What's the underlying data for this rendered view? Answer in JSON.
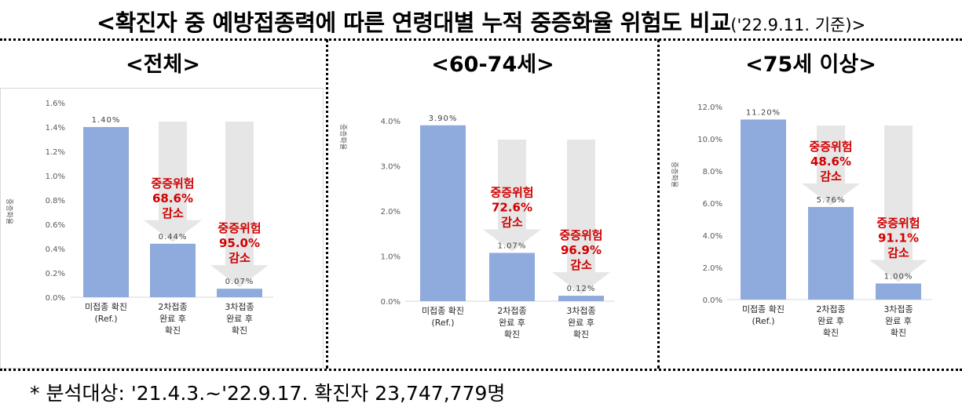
{
  "title": {
    "main": "<확진자 중 예방접종력에 따른 연령대별 누적 중증화율 위험도 비교",
    "sub": "('22.9.11. 기준)>"
  },
  "footnote": "* 분석대상: '21.4.3.~'22.9.17. 확진자 23,747,779명",
  "colors": {
    "bar": "#8faadc",
    "arrow": "#e6e6e6",
    "reduction_text": "#d00000",
    "axis_text": "#595959"
  },
  "chart_data": [
    {
      "type": "bar",
      "title": "<전체>",
      "ylabel": "중증화율",
      "ylim": [
        0,
        0.016
      ],
      "yticks": [
        "0.0%",
        "0.2%",
        "0.4%",
        "0.6%",
        "0.8%",
        "1.0%",
        "1.2%",
        "1.4%",
        "1.6%"
      ],
      "categories": [
        [
          "미접종 확진",
          "(Ref.)"
        ],
        [
          "2차접종",
          "완료 후",
          "확진"
        ],
        [
          "3차접종",
          "완료 후",
          "확진"
        ]
      ],
      "values": [
        0.014,
        0.0044,
        0.0007
      ],
      "value_labels": [
        "1.40%",
        "0.44%",
        "0.07%"
      ],
      "reductions": [
        null,
        [
          "중증위험",
          "68.6%",
          "감소"
        ],
        [
          "중증위험",
          "95.0%",
          "감소"
        ]
      ]
    },
    {
      "type": "bar",
      "title": "<60-74세>",
      "ylabel": "중증화율",
      "ylim": [
        0,
        0.04
      ],
      "yticks": [
        "0.0%",
        "1.0%",
        "2.0%",
        "3.0%",
        "4.0%"
      ],
      "categories": [
        [
          "미접종 확진",
          "(Ref.)"
        ],
        [
          "2차접종",
          "완료 후",
          "확진"
        ],
        [
          "3차접종",
          "완료 후",
          "확진"
        ]
      ],
      "values": [
        0.039,
        0.0107,
        0.0012
      ],
      "value_labels": [
        "3.90%",
        "1.07%",
        "0.12%"
      ],
      "reductions": [
        null,
        [
          "중증위험",
          "72.6%",
          "감소"
        ],
        [
          "중증위험",
          "96.9%",
          "감소"
        ]
      ]
    },
    {
      "type": "bar",
      "title": "<75세 이상>",
      "ylabel": "중증화율",
      "ylim": [
        0,
        0.12
      ],
      "yticks": [
        "0.0%",
        "2.0%",
        "4.0%",
        "6.0%",
        "8.0%",
        "10.0%",
        "12.0%"
      ],
      "categories": [
        [
          "미접종 확진",
          "(Ref.)"
        ],
        [
          "2차접종",
          "완료 후",
          "확진"
        ],
        [
          "3차접종",
          "완료 후",
          "확진"
        ]
      ],
      "values": [
        0.112,
        0.0576,
        0.01
      ],
      "value_labels": [
        "11.20%",
        "5.76%",
        "1.00%"
      ],
      "reductions": [
        null,
        [
          "중증위험",
          "48.6%",
          "감소"
        ],
        [
          "중증위험",
          "91.1%",
          "감소"
        ]
      ]
    }
  ]
}
